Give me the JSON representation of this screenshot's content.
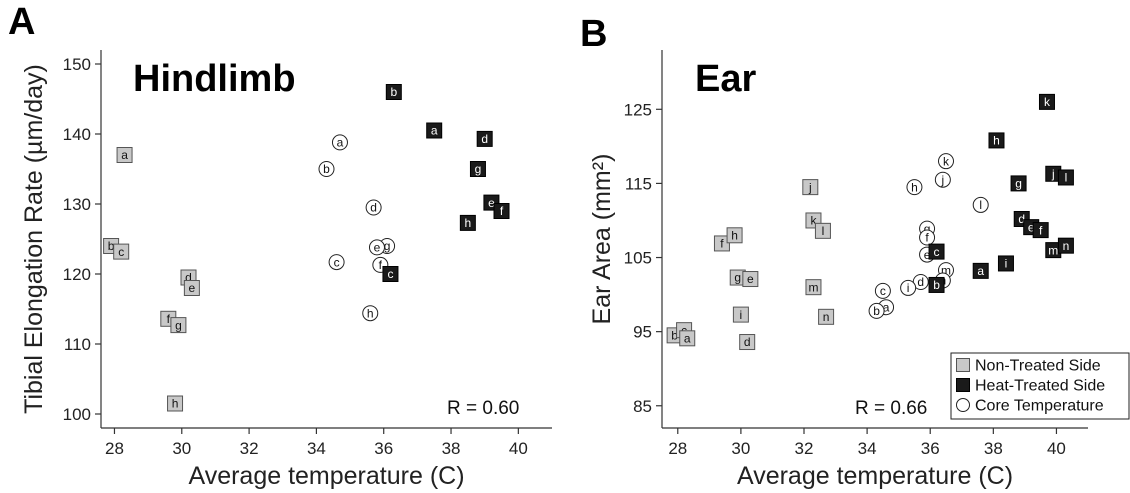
{
  "colors": {
    "non_treated": "#c8c8c8",
    "heat_treated": "#1a1a1a",
    "core": "#ffffff",
    "axis": "#333333"
  },
  "chart_data": [
    {
      "panel": "A",
      "type": "scatter",
      "title": "Hindlimb",
      "xlabel": "Average temperature (C)",
      "ylabel": "Tibial Elongation Rate (µm/day)",
      "xlim": [
        27.6,
        41
      ],
      "ylim": [
        98,
        152
      ],
      "xticks": [
        28,
        30,
        32,
        34,
        36,
        38,
        40
      ],
      "yticks": [
        100,
        110,
        120,
        130,
        140,
        150
      ],
      "annotation": "R = 0.60",
      "series": [
        {
          "kind": "non_treated",
          "points": [
            {
              "label": "a",
              "x": 28.3,
              "y": 137
            },
            {
              "label": "b",
              "x": 27.9,
              "y": 124
            },
            {
              "label": "c",
              "x": 28.2,
              "y": 123.2
            },
            {
              "label": "d",
              "x": 30.2,
              "y": 119.5
            },
            {
              "label": "e",
              "x": 30.3,
              "y": 118
            },
            {
              "label": "f",
              "x": 29.6,
              "y": 113.6
            },
            {
              "label": "g",
              "x": 29.9,
              "y": 112.7
            },
            {
              "label": "h",
              "x": 29.8,
              "y": 101.5
            }
          ]
        },
        {
          "kind": "heat_treated",
          "points": [
            {
              "label": "b",
              "x": 36.3,
              "y": 146
            },
            {
              "label": "a",
              "x": 37.5,
              "y": 140.5
            },
            {
              "label": "d",
              "x": 39,
              "y": 139.3
            },
            {
              "label": "g",
              "x": 38.8,
              "y": 135
            },
            {
              "label": "e",
              "x": 39.2,
              "y": 130.2
            },
            {
              "label": "f",
              "x": 39.5,
              "y": 129
            },
            {
              "label": "h",
              "x": 38.5,
              "y": 127.3
            },
            {
              "label": "c",
              "x": 36.2,
              "y": 120
            }
          ]
        },
        {
          "kind": "core",
          "points": [
            {
              "label": "a",
              "x": 34.7,
              "y": 138.8
            },
            {
              "label": "b",
              "x": 34.3,
              "y": 135
            },
            {
              "label": "d",
              "x": 35.7,
              "y": 129.5
            },
            {
              "label": "g",
              "x": 36.1,
              "y": 124
            },
            {
              "label": "e",
              "x": 35.8,
              "y": 123.8
            },
            {
              "label": "c",
              "x": 34.6,
              "y": 121.7
            },
            {
              "label": "f",
              "x": 35.9,
              "y": 121.3
            },
            {
              "label": "h",
              "x": 35.6,
              "y": 114.4
            }
          ]
        }
      ]
    },
    {
      "panel": "B",
      "type": "scatter",
      "title": "Ear",
      "xlabel": "Average temperature (C)",
      "ylabel": "Ear Area (mm²)",
      "xlim": [
        27.5,
        41
      ],
      "ylim": [
        82,
        133
      ],
      "xticks": [
        28,
        30,
        32,
        34,
        36,
        38,
        40
      ],
      "yticks": [
        85,
        95,
        105,
        115,
        125
      ],
      "annotation": "R = 0.66",
      "legend": {
        "position": "bottom-right",
        "entries": [
          {
            "kind": "non_treated",
            "label": "Non-Treated Side"
          },
          {
            "kind": "heat_treated",
            "label": "Heat-Treated Side"
          },
          {
            "kind": "core",
            "label": "Core Temperature"
          }
        ]
      },
      "series": [
        {
          "kind": "non_treated",
          "points": [
            {
              "label": "b",
              "x": 27.9,
              "y": 94.5
            },
            {
              "label": "c",
              "x": 28.2,
              "y": 95.2
            },
            {
              "label": "a",
              "x": 28.3,
              "y": 94.1
            },
            {
              "label": "f",
              "x": 29.4,
              "y": 106.9
            },
            {
              "label": "h",
              "x": 29.8,
              "y": 108
            },
            {
              "label": "g",
              "x": 29.9,
              "y": 102.3
            },
            {
              "label": "e",
              "x": 30.3,
              "y": 102.1
            },
            {
              "label": "i",
              "x": 30,
              "y": 97.3
            },
            {
              "label": "d",
              "x": 30.2,
              "y": 93.6
            },
            {
              "label": "j",
              "x": 32.2,
              "y": 114.5
            },
            {
              "label": "k",
              "x": 32.3,
              "y": 110
            },
            {
              "label": "l",
              "x": 32.6,
              "y": 108.6
            },
            {
              "label": "m",
              "x": 32.3,
              "y": 101
            },
            {
              "label": "n",
              "x": 32.7,
              "y": 97
            }
          ]
        },
        {
          "kind": "heat_treated",
          "points": [
            {
              "label": "k",
              "x": 39.7,
              "y": 126
            },
            {
              "label": "h",
              "x": 38.1,
              "y": 120.8
            },
            {
              "label": "j",
              "x": 39.9,
              "y": 116.3
            },
            {
              "label": "l",
              "x": 40.3,
              "y": 115.8
            },
            {
              "label": "g",
              "x": 38.8,
              "y": 115
            },
            {
              "label": "d",
              "x": 38.9,
              "y": 110.2
            },
            {
              "label": "e",
              "x": 39.2,
              "y": 109.1
            },
            {
              "label": "f",
              "x": 39.5,
              "y": 108.7
            },
            {
              "label": "c",
              "x": 36.2,
              "y": 105.8
            },
            {
              "label": "m",
              "x": 39.9,
              "y": 106
            },
            {
              "label": "n",
              "x": 40.3,
              "y": 106.6
            },
            {
              "label": "i",
              "x": 38.4,
              "y": 104.2
            },
            {
              "label": "a",
              "x": 37.6,
              "y": 103.2
            },
            {
              "label": "b",
              "x": 36.2,
              "y": 101.3
            }
          ]
        },
        {
          "kind": "core",
          "points": [
            {
              "label": "k",
              "x": 36.5,
              "y": 118
            },
            {
              "label": "j",
              "x": 36.4,
              "y": 115.5
            },
            {
              "label": "h",
              "x": 35.5,
              "y": 114.5
            },
            {
              "label": "l",
              "x": 37.6,
              "y": 112.1
            },
            {
              "label": "g",
              "x": 35.9,
              "y": 108.9
            },
            {
              "label": "f",
              "x": 35.9,
              "y": 107.7
            },
            {
              "label": "e",
              "x": 35.9,
              "y": 105.4
            },
            {
              "label": "m",
              "x": 36.5,
              "y": 103.3
            },
            {
              "label": "n",
              "x": 36.4,
              "y": 101.9
            },
            {
              "label": "d",
              "x": 35.7,
              "y": 101.7
            },
            {
              "label": "i",
              "x": 35.3,
              "y": 100.9
            },
            {
              "label": "c",
              "x": 34.5,
              "y": 100.5
            },
            {
              "label": "a",
              "x": 34.6,
              "y": 98.3
            },
            {
              "label": "b",
              "x": 34.3,
              "y": 97.8
            }
          ]
        }
      ]
    }
  ]
}
